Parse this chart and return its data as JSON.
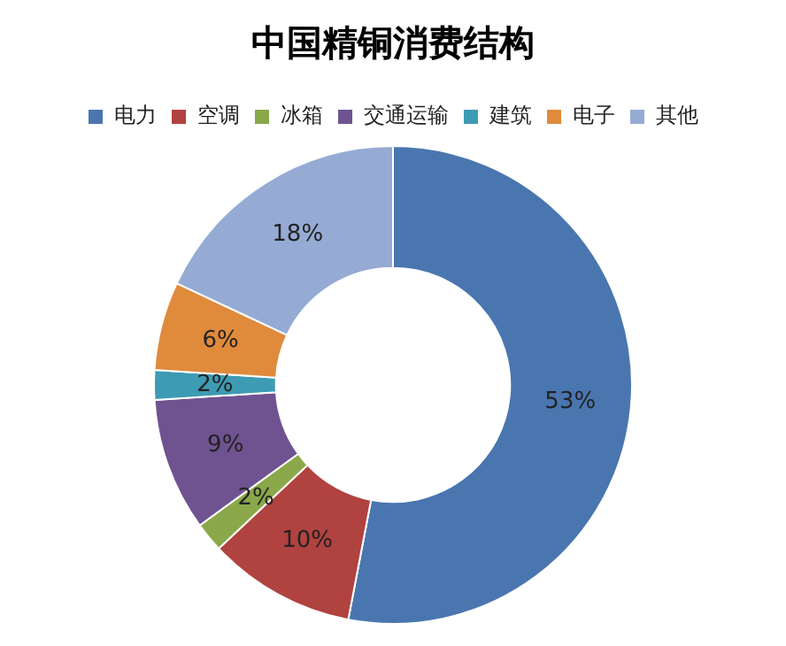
{
  "chart_data": {
    "type": "donut",
    "title": "中国精铜消费结构",
    "categories": [
      "电力",
      "空调",
      "冰箱",
      "交通运输",
      "建筑",
      "电子",
      "其他"
    ],
    "values": [
      53,
      10,
      2,
      9,
      2,
      6,
      18
    ],
    "value_labels": [
      "53%",
      "10%",
      "2%",
      "9%",
      "2%",
      "6%",
      "18%"
    ],
    "colors": [
      "#4a76b0",
      "#b0423f",
      "#8aa84a",
      "#6f5391",
      "#3d9bb3",
      "#e08a3c",
      "#95abd4"
    ],
    "legend": "top"
  }
}
